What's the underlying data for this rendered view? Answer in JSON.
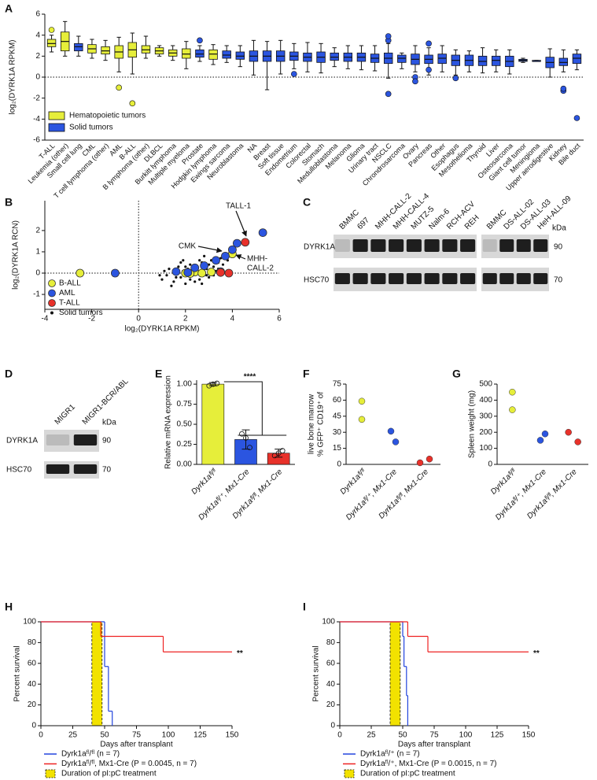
{
  "panels": [
    "A",
    "B",
    "C",
    "D",
    "E",
    "F",
    "G",
    "H",
    "I"
  ],
  "chart_data": [
    {
      "type": "box",
      "y_label": "log₂(DYRK1A RPKM)",
      "categories": [
        "T-ALL",
        "Leukemia (other)",
        "Small cell lung",
        "CML",
        "T cell lymphoma (other)",
        "AML",
        "B-ALL",
        "B lymphoma (other)",
        "DLBCL",
        "Burkitt lymphoma",
        "Multiple myeloma",
        "Prostate",
        "Hodgkin lymphoma",
        "Ewings sarcoma",
        "Neuroblastoma",
        "NA",
        "Breast",
        "Soft tissue",
        "Endometrium",
        "Colorectal",
        "Stomach",
        "Medulloblastoma",
        "Melanoma",
        "Glioma",
        "Urinary tract",
        "NSCLC",
        "Chrondrosarcoma",
        "Ovary",
        "Pancreas",
        "Other",
        "Esophagus",
        "Mesothelioma",
        "Thyroid",
        "Liver",
        "Osteosarcoma",
        "Giant cell tumor",
        "Meningioma",
        "Upper aerodigestive",
        "Kidney",
        "Bile duct"
      ],
      "min": [
        2.4,
        2.0,
        2.0,
        1.8,
        1.6,
        0.5,
        0.3,
        1.8,
        2.0,
        1.6,
        0.8,
        1.5,
        1.2,
        1.4,
        1.0,
        0.2,
        -1.2,
        0.3,
        0.8,
        0.5,
        0.4,
        1.0,
        0.8,
        0.7,
        0.6,
        -0.1,
        0.8,
        0.5,
        0.2,
        0.5,
        0.2,
        0.5,
        0.4,
        0.5,
        0.3,
        1.4,
        1.5,
        0.0,
        0.5,
        0.7
      ],
      "q1": [
        2.9,
        2.5,
        2.5,
        2.3,
        2.2,
        1.8,
        1.9,
        2.3,
        2.2,
        2.0,
        1.8,
        1.9,
        1.7,
        1.8,
        1.7,
        1.5,
        1.5,
        1.5,
        1.6,
        1.5,
        1.4,
        1.6,
        1.5,
        1.5,
        1.4,
        1.3,
        1.4,
        1.2,
        1.3,
        1.3,
        1.1,
        1.1,
        1.1,
        1.1,
        1.0,
        1.5,
        1.5,
        0.9,
        1.1,
        1.3
      ],
      "median": [
        3.2,
        3.4,
        2.9,
        2.7,
        2.5,
        2.4,
        2.6,
        2.6,
        2.5,
        2.3,
        2.2,
        2.2,
        2.2,
        2.1,
        2.0,
        2.0,
        2.0,
        2.0,
        2.0,
        1.9,
        1.9,
        1.9,
        1.9,
        1.9,
        1.8,
        1.8,
        1.8,
        1.7,
        1.7,
        1.8,
        1.6,
        1.6,
        1.5,
        1.6,
        1.5,
        1.6,
        1.5,
        1.4,
        1.4,
        1.8
      ],
      "q3": [
        3.6,
        4.3,
        3.2,
        3.1,
        2.9,
        3.0,
        3.3,
        3.0,
        2.8,
        2.6,
        2.7,
        2.6,
        2.6,
        2.5,
        2.4,
        2.5,
        2.5,
        2.5,
        2.4,
        2.3,
        2.4,
        2.3,
        2.3,
        2.3,
        2.2,
        2.3,
        2.1,
        2.2,
        2.1,
        2.2,
        2.1,
        2.1,
        2.0,
        2.0,
        2.0,
        1.7,
        1.6,
        1.9,
        1.8,
        2.2
      ],
      "max": [
        4.0,
        5.3,
        3.9,
        3.6,
        3.5,
        3.8,
        4.2,
        3.9,
        3.0,
        3.0,
        3.4,
        3.0,
        3.1,
        3.0,
        3.0,
        3.5,
        3.4,
        3.5,
        3.2,
        3.3,
        3.2,
        2.8,
        3.0,
        3.0,
        3.0,
        3.2,
        2.3,
        3.0,
        2.8,
        3.0,
        2.6,
        2.5,
        2.8,
        2.6,
        2.6,
        1.8,
        1.6,
        2.7,
        2.6,
        2.6
      ],
      "outliers": [
        [
          4.5
        ],
        [],
        [],
        [],
        [],
        [
          -1.0
        ],
        [
          -2.5
        ],
        [],
        [],
        [],
        [],
        [
          3.5
        ],
        [],
        [],
        [],
        [],
        [],
        [],
        [
          0.3
        ],
        [],
        [],
        [],
        [],
        [],
        [],
        [
          3.5,
          3.9,
          -1.6
        ],
        [],
        [
          0,
          -0.4
        ],
        [
          3.2,
          0.7
        ],
        [],
        [
          -0.1
        ],
        [],
        [],
        [],
        [],
        [],
        [],
        [],
        [
          -1.3,
          -1.1
        ],
        [
          -3.9
        ]
      ],
      "category_group": [
        0,
        0,
        1,
        0,
        0,
        0,
        0,
        0,
        0,
        0,
        0,
        1,
        0,
        1,
        1,
        1,
        1,
        1,
        1,
        1,
        1,
        1,
        1,
        1,
        1,
        1,
        1,
        1,
        1,
        1,
        1,
        1,
        1,
        1,
        1,
        1,
        1,
        1,
        1,
        1
      ],
      "groups": [
        {
          "name": "Hematopoietic tumors",
          "color": "#e6ee3a"
        },
        {
          "name": "Solid tumors",
          "color": "#2b55e0"
        }
      ],
      "ylim": [
        -6,
        6
      ],
      "yticks": [
        -6,
        -4,
        -2,
        0,
        2,
        4,
        6
      ],
      "ref_line": 0
    },
    {
      "type": "scatter",
      "x_label": "log₂(DYRK1A RPKM)",
      "y_label": "log₂(DYRK1A RCN)",
      "xlim": [
        -4,
        6
      ],
      "xticks": [
        -4,
        -2,
        0,
        2,
        4,
        6
      ],
      "ylim": [
        -1.7,
        3.4
      ],
      "yticks": [
        -1,
        0,
        1,
        2
      ],
      "zero_lines": true,
      "series": [
        {
          "name": "B-ALL",
          "color": "#e6ee3a",
          "marker": "circle",
          "x": [
            -2.5,
            4.0,
            2.0,
            2.4,
            2.7,
            3.1,
            2.2
          ],
          "y": [
            0,
            0.9,
            0,
            0.05,
            0,
            0.05,
            -0.02
          ]
        },
        {
          "name": "AML",
          "color": "#2b55e0",
          "marker": "circle",
          "x": [
            -1.0,
            5.3,
            4.2,
            4.0,
            3.7,
            3.3,
            2.8,
            2.4,
            1.6,
            2.1,
            3.5
          ],
          "y": [
            0,
            1.9,
            1.4,
            1.1,
            0.8,
            0.6,
            0.35,
            0.25,
            0.07,
            0.03,
            0.07
          ]
        },
        {
          "name": "T-ALL",
          "color": "#e8312a",
          "marker": "circle",
          "x": [
            4.55,
            3.85,
            3.5
          ],
          "y": [
            1.45,
            0,
            0.03
          ]
        },
        {
          "name": "Solid tumors",
          "color": "#111111",
          "marker": "dot",
          "x": [
            1.0,
            1.2,
            1.3,
            1.5,
            1.6,
            1.7,
            1.8,
            1.9,
            2.0,
            2.1,
            2.2,
            2.3,
            2.4,
            2.5,
            2.6,
            2.7,
            2.8,
            2.9,
            3.0,
            3.1,
            3.2,
            3.3,
            3.4,
            3.5,
            1.4,
            1.8,
            2.2,
            2.6,
            3.0,
            3.4,
            2.0,
            2.4,
            2.8,
            3.2,
            1.1,
            1.6,
            2.3,
            2.9,
            3.6,
            3.8,
            0.9,
            1.9,
            2.7
          ],
          "y": [
            -0.3,
            -0.1,
            0.2,
            -0.4,
            0.0,
            0.3,
            -0.2,
            0.1,
            -0.5,
            0.2,
            0.4,
            -0.1,
            0.3,
            0.0,
            -0.3,
            0.5,
            0.2,
            -0.1,
            0.4,
            0.6,
            0.3,
            0.1,
            0.5,
            0.7,
            -0.6,
            0.5,
            -0.3,
            0.6,
            -0.2,
            0.2,
            0.3,
            -0.4,
            0.8,
            -0.1,
            0.1,
            -0.2,
            0.0,
            0.2,
            0.4,
            0.6,
            -0.1,
            0.6,
            -0.5
          ]
        }
      ],
      "annotations": [
        [
          "TALL-1"
        ],
        [
          "CMK"
        ],
        [
          "MHH-",
          "CALL-2"
        ]
      ]
    },
    {
      "type": "bar",
      "y_label": [
        "Relative mRNA expression"
      ],
      "categories": [
        "Dyrk1aᶠˡ/ᶠˡ",
        "Dyrk1aᶠˡ/⁺, Mx1-Cre",
        "Dyrk1aᶠˡ/ᶠˡ, Mx1-Cre"
      ],
      "values": [
        1.0,
        0.31,
        0.14
      ],
      "errors": [
        0.02,
        0.12,
        0.05
      ],
      "points": [
        [
          0.98,
          1.0,
          1.01
        ],
        [
          0.38,
          0.33,
          0.21
        ],
        [
          0.11,
          0.14,
          0.17
        ]
      ],
      "colors": [
        "#e6ee3a",
        "#2b55e0",
        "#e8312a"
      ],
      "ylim": [
        0,
        1.05
      ],
      "yticks": [
        {
          "value": 0,
          "label": "0.00"
        },
        {
          "value": 0.25,
          "label": "0.25"
        },
        {
          "value": 0.5,
          "label": "0.50"
        },
        {
          "value": 0.75,
          "label": "0.75"
        },
        {
          "value": 1,
          "label": "1.00"
        }
      ],
      "annotation": "****"
    },
    {
      "type": "dot",
      "y_label": [
        "% GFP⁺ CD19⁺ of",
        "live bone marrow"
      ],
      "categories": [
        "Dyrk1aᶠˡ/ᶠˡ",
        "Dyrk1aᶠˡ/⁺, Mx1-Cre",
        "Dyrk1aᶠˡ/ᶠˡ, Mx1-Cre"
      ],
      "points": [
        [
          59,
          42
        ],
        [
          31,
          21
        ],
        [
          1.5,
          5
        ]
      ],
      "colors": [
        "#e6ee3a",
        "#2b55e0",
        "#e8312a"
      ],
      "ylim": [
        0,
        75
      ],
      "yticks": [
        0,
        15,
        30,
        45,
        60,
        75
      ]
    },
    {
      "type": "dot",
      "y_label": [
        "Spleen weight (mg)"
      ],
      "categories": [
        "Dyrk1aᶠˡ/ᶠˡ",
        "Dyrk1aᶠˡ/⁺, Mx1-Cre",
        "Dyrk1aᶠˡ/ᶠˡ, Mx1-Cre"
      ],
      "points": [
        [
          450,
          340
        ],
        [
          150,
          190
        ],
        [
          200,
          140
        ]
      ],
      "colors": [
        "#e6ee3a",
        "#2b55e0",
        "#e8312a"
      ],
      "ylim": [
        0,
        500
      ],
      "yticks": [
        0,
        100,
        200,
        300,
        400,
        500
      ]
    },
    {
      "type": "survival",
      "x_label": "Days after transplant",
      "y_label": "Percent survival",
      "xlim": [
        0,
        150
      ],
      "xticks": [
        0,
        25,
        50,
        75,
        100,
        125,
        150
      ],
      "ylim": [
        0,
        100
      ],
      "yticks": [
        0,
        20,
        40,
        60,
        80,
        100
      ],
      "series": [
        {
          "name": "Dyrk1aᶠˡ/ᶠˡ (n = 7)",
          "color": "#2244dd",
          "x": [
            0,
            50,
            53,
            56
          ],
          "values": [
            100,
            57,
            14,
            0
          ]
        },
        {
          "name": "Dyrk1aᶠˡ/ᶠˡ, Mx1-Cre (P = 0.0045, n = 7)",
          "color": "#ee2222",
          "x": [
            0,
            47,
            96,
            150
          ],
          "values": [
            100,
            86,
            71,
            71
          ]
        }
      ],
      "shade": {
        "name": "Duration of pI:pC treatment",
        "x": [
          40,
          48
        ],
        "color": "#f2e200"
      },
      "annotation": "**"
    },
    {
      "type": "survival",
      "x_label": "Days after transplant",
      "y_label": "Percent survival",
      "xlim": [
        0,
        150
      ],
      "xticks": [
        0,
        25,
        50,
        75,
        100,
        125,
        150
      ],
      "ylim": [
        0,
        100
      ],
      "yticks": [
        0,
        20,
        40,
        60,
        80,
        100
      ],
      "series": [
        {
          "name": "Dyrk1aᶠˡ/⁺ (n = 7)",
          "color": "#2244dd",
          "x": [
            0,
            50,
            51,
            53,
            54
          ],
          "values": [
            100,
            86,
            57,
            29,
            0
          ]
        },
        {
          "name": "Dyrk1aᶠˡ/⁺, Mx1-Cre (P = 0.0015, n = 7)",
          "color": "#ee2222",
          "x": [
            0,
            54,
            70,
            150
          ],
          "values": [
            100,
            86,
            71,
            71
          ]
        }
      ],
      "shade": {
        "name": "Duration of pI:pC treatment",
        "x": [
          40,
          48
        ],
        "color": "#f2e200"
      },
      "annotation": "**"
    }
  ],
  "blots": [
    {
      "lanes": [
        "BMMC",
        "697",
        "MHH-CALL-2",
        "MHH-CALL-4",
        "MUTZ-5",
        "Nalm-6",
        "RCH-ACV",
        "REH"
      ],
      "lanes2": [
        "BMMC",
        "DS-ALL-02",
        "DS-ALL-03",
        "HeH-ALL-09"
      ],
      "rows": [
        "DYRK1A",
        "HSC70"
      ],
      "sizes": [
        90,
        70
      ],
      "unit": "kDa"
    },
    {
      "lanes": [
        "MIGR1",
        "MIGR1-BCR/ABL"
      ],
      "rows": [
        "DYRK1A",
        "HSC70"
      ],
      "sizes": [
        90,
        70
      ],
      "unit": "kDa"
    }
  ]
}
